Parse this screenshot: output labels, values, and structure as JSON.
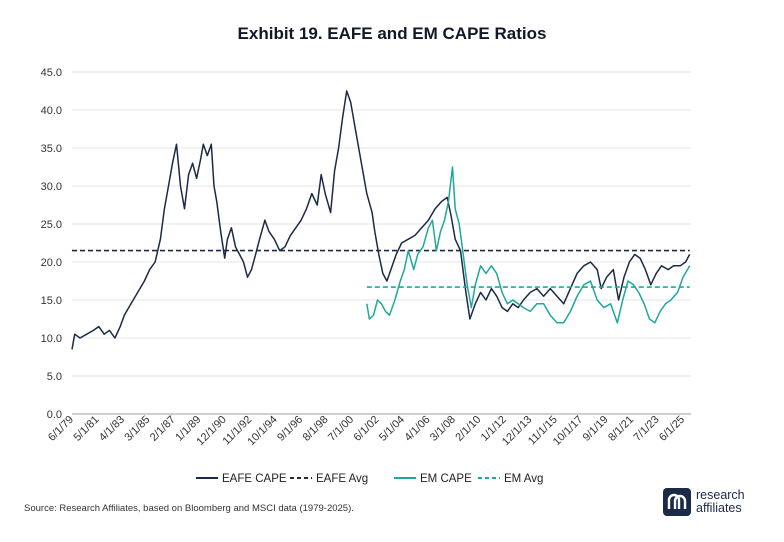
{
  "chart_data": {
    "type": "line",
    "title": "Exhibit 19. EAFE and EM CAPE Ratios",
    "ylim": [
      0,
      45
    ],
    "y_ticks": [
      "0.0",
      "5.0",
      "10.0",
      "15.0",
      "20.0",
      "25.0",
      "30.0",
      "35.0",
      "40.0",
      "45.0"
    ],
    "x_tick_labels": [
      "6/1/79",
      "5/1/81",
      "4/1/83",
      "3/1/85",
      "2/1/87",
      "1/1/89",
      "12/1/90",
      "11/1/92",
      "10/1/94",
      "9/1/96",
      "8/1/98",
      "7/1/00",
      "6/1/02",
      "5/1/04",
      "4/1/06",
      "3/1/08",
      "2/1/10",
      "1/1/12",
      "12/1/13",
      "11/1/15",
      "10/1/17",
      "9/1/19",
      "8/1/21",
      "7/1/23",
      "6/1/25"
    ],
    "grid": true,
    "legend_position": "bottom",
    "series": [
      {
        "name": "EAFE CAPE",
        "style": "solid",
        "color": "#1b2a47",
        "points": [
          [
            1979.4,
            8.5
          ],
          [
            1979.6,
            10.5
          ],
          [
            1980.0,
            10.0
          ],
          [
            1980.5,
            10.5
          ],
          [
            1981.0,
            11.0
          ],
          [
            1981.4,
            11.5
          ],
          [
            1981.8,
            10.5
          ],
          [
            1982.2,
            11.0
          ],
          [
            1982.6,
            10.0
          ],
          [
            1983.0,
            11.5
          ],
          [
            1983.3,
            13.0
          ],
          [
            1983.8,
            14.5
          ],
          [
            1984.3,
            16.0
          ],
          [
            1984.8,
            17.5
          ],
          [
            1985.2,
            19.0
          ],
          [
            1985.6,
            20.0
          ],
          [
            1986.0,
            23.0
          ],
          [
            1986.3,
            27.0
          ],
          [
            1986.6,
            30.0
          ],
          [
            1986.9,
            33.0
          ],
          [
            1987.2,
            35.5
          ],
          [
            1987.5,
            30.0
          ],
          [
            1987.8,
            27.0
          ],
          [
            1988.1,
            31.5
          ],
          [
            1988.4,
            33.0
          ],
          [
            1988.7,
            31.0
          ],
          [
            1989.0,
            33.5
          ],
          [
            1989.2,
            35.5
          ],
          [
            1989.5,
            34.0
          ],
          [
            1989.8,
            35.5
          ],
          [
            1990.0,
            30.0
          ],
          [
            1990.2,
            28.0
          ],
          [
            1990.5,
            24.0
          ],
          [
            1990.8,
            20.5
          ],
          [
            1991.0,
            23.0
          ],
          [
            1991.3,
            24.5
          ],
          [
            1991.6,
            22.0
          ],
          [
            1991.9,
            21.0
          ],
          [
            1992.2,
            20.0
          ],
          [
            1992.5,
            18.0
          ],
          [
            1992.8,
            19.0
          ],
          [
            1993.1,
            21.0
          ],
          [
            1993.4,
            23.0
          ],
          [
            1993.8,
            25.5
          ],
          [
            1994.1,
            24.0
          ],
          [
            1994.5,
            23.0
          ],
          [
            1994.9,
            21.5
          ],
          [
            1995.3,
            22.0
          ],
          [
            1995.7,
            23.5
          ],
          [
            1996.1,
            24.5
          ],
          [
            1996.5,
            25.5
          ],
          [
            1996.9,
            27.0
          ],
          [
            1997.3,
            29.0
          ],
          [
            1997.7,
            27.5
          ],
          [
            1998.0,
            31.5
          ],
          [
            1998.3,
            29.0
          ],
          [
            1998.7,
            26.5
          ],
          [
            1999.0,
            32.0
          ],
          [
            1999.3,
            35.0
          ],
          [
            1999.6,
            39.0
          ],
          [
            1999.9,
            42.5
          ],
          [
            2000.2,
            41.0
          ],
          [
            2000.6,
            37.0
          ],
          [
            2001.0,
            33.0
          ],
          [
            2001.4,
            29.0
          ],
          [
            2001.8,
            26.5
          ],
          [
            2002.0,
            24.0
          ],
          [
            2002.3,
            21.0
          ],
          [
            2002.6,
            18.5
          ],
          [
            2002.9,
            17.5
          ],
          [
            2003.2,
            19.0
          ],
          [
            2003.6,
            21.0
          ],
          [
            2004.0,
            22.5
          ],
          [
            2004.5,
            23.0
          ],
          [
            2005.0,
            23.5
          ],
          [
            2005.5,
            24.5
          ],
          [
            2006.0,
            25.5
          ],
          [
            2006.5,
            27.0
          ],
          [
            2007.0,
            28.0
          ],
          [
            2007.4,
            28.5
          ],
          [
            2007.7,
            26.0
          ],
          [
            2008.0,
            23.0
          ],
          [
            2008.4,
            21.5
          ],
          [
            2008.8,
            16.0
          ],
          [
            2009.1,
            12.5
          ],
          [
            2009.5,
            14.5
          ],
          [
            2009.9,
            16.0
          ],
          [
            2010.3,
            15.0
          ],
          [
            2010.7,
            16.5
          ],
          [
            2011.1,
            15.5
          ],
          [
            2011.5,
            14.0
          ],
          [
            2011.9,
            13.5
          ],
          [
            2012.3,
            14.5
          ],
          [
            2012.7,
            14.0
          ],
          [
            2013.1,
            15.0
          ],
          [
            2013.6,
            16.0
          ],
          [
            2014.1,
            16.5
          ],
          [
            2014.6,
            15.5
          ],
          [
            2015.1,
            16.5
          ],
          [
            2015.6,
            15.5
          ],
          [
            2016.1,
            14.5
          ],
          [
            2016.6,
            16.5
          ],
          [
            2017.1,
            18.5
          ],
          [
            2017.6,
            19.5
          ],
          [
            2018.1,
            20.0
          ],
          [
            2018.6,
            19.0
          ],
          [
            2018.9,
            16.5
          ],
          [
            2019.3,
            18.0
          ],
          [
            2019.8,
            19.0
          ],
          [
            2020.2,
            15.0
          ],
          [
            2020.6,
            18.0
          ],
          [
            2021.0,
            20.0
          ],
          [
            2021.4,
            21.0
          ],
          [
            2021.8,
            20.5
          ],
          [
            2022.2,
            19.0
          ],
          [
            2022.6,
            17.0
          ],
          [
            2023.0,
            18.5
          ],
          [
            2023.4,
            19.5
          ],
          [
            2023.9,
            19.0
          ],
          [
            2024.3,
            19.5
          ],
          [
            2024.8,
            19.5
          ],
          [
            2025.2,
            20.0
          ],
          [
            2025.5,
            21.0
          ]
        ]
      },
      {
        "name": "EAFE Avg",
        "style": "dashed",
        "color": "#1b2a47",
        "points": [
          [
            1979.4,
            21.5
          ],
          [
            2025.5,
            21.5
          ]
        ]
      },
      {
        "name": "EM CAPE",
        "style": "solid",
        "color": "#1fa89a",
        "points": [
          [
            2001.4,
            14.5
          ],
          [
            2001.6,
            12.5
          ],
          [
            2001.9,
            13.0
          ],
          [
            2002.2,
            15.0
          ],
          [
            2002.5,
            14.5
          ],
          [
            2002.8,
            13.5
          ],
          [
            2003.1,
            13.0
          ],
          [
            2003.5,
            15.0
          ],
          [
            2003.9,
            17.5
          ],
          [
            2004.2,
            19.0
          ],
          [
            2004.5,
            21.5
          ],
          [
            2004.9,
            19.0
          ],
          [
            2005.2,
            21.0
          ],
          [
            2005.6,
            22.0
          ],
          [
            2006.0,
            24.5
          ],
          [
            2006.3,
            25.5
          ],
          [
            2006.6,
            21.5
          ],
          [
            2006.9,
            24.0
          ],
          [
            2007.2,
            25.5
          ],
          [
            2007.5,
            28.0
          ],
          [
            2007.8,
            32.5
          ],
          [
            2008.0,
            27.0
          ],
          [
            2008.3,
            25.0
          ],
          [
            2008.6,
            21.0
          ],
          [
            2008.9,
            17.0
          ],
          [
            2009.2,
            14.0
          ],
          [
            2009.5,
            17.0
          ],
          [
            2009.9,
            19.5
          ],
          [
            2010.3,
            18.5
          ],
          [
            2010.7,
            19.5
          ],
          [
            2011.1,
            18.5
          ],
          [
            2011.5,
            16.0
          ],
          [
            2011.9,
            14.5
          ],
          [
            2012.3,
            15.0
          ],
          [
            2012.7,
            14.5
          ],
          [
            2013.1,
            14.0
          ],
          [
            2013.6,
            13.5
          ],
          [
            2014.1,
            14.5
          ],
          [
            2014.6,
            14.5
          ],
          [
            2015.1,
            13.0
          ],
          [
            2015.6,
            12.0
          ],
          [
            2016.1,
            12.0
          ],
          [
            2016.6,
            13.5
          ],
          [
            2017.1,
            15.5
          ],
          [
            2017.6,
            17.0
          ],
          [
            2018.1,
            17.5
          ],
          [
            2018.6,
            15.0
          ],
          [
            2019.1,
            14.0
          ],
          [
            2019.6,
            14.5
          ],
          [
            2020.1,
            12.0
          ],
          [
            2020.5,
            15.0
          ],
          [
            2020.9,
            17.5
          ],
          [
            2021.3,
            17.0
          ],
          [
            2021.7,
            16.0
          ],
          [
            2022.1,
            14.5
          ],
          [
            2022.5,
            12.5
          ],
          [
            2022.9,
            12.0
          ],
          [
            2023.3,
            13.5
          ],
          [
            2023.7,
            14.5
          ],
          [
            2024.1,
            15.0
          ],
          [
            2024.6,
            16.0
          ],
          [
            2025.0,
            18.0
          ],
          [
            2025.5,
            19.5
          ]
        ]
      },
      {
        "name": "EM Avg",
        "style": "dashed",
        "color": "#1fa89a",
        "points": [
          [
            2001.4,
            16.7
          ],
          [
            2025.5,
            16.7
          ]
        ]
      }
    ]
  },
  "source": "Source: Research Affiliates, based on Bloomberg and MSCI data (1979-2025).",
  "logo": {
    "line1": "research",
    "line2": "affiliates"
  }
}
